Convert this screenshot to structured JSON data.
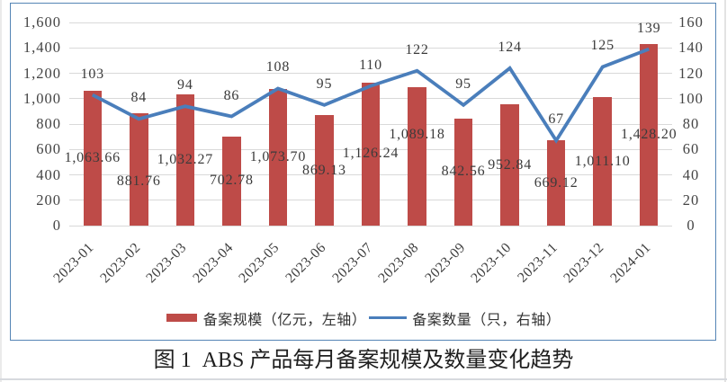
{
  "caption": "图 1  ABS 产品每月备案规模及数量变化趋势",
  "chart_data": {
    "type": "combo: bar (left axis) + line (right axis)",
    "categories": [
      "2023-01",
      "2023-02",
      "2023-03",
      "2023-04",
      "2023-05",
      "2023-06",
      "2023-07",
      "2023-08",
      "2023-09",
      "2023-10",
      "2023-11",
      "2023-12",
      "2024-01"
    ],
    "series": [
      {
        "name": "备案规模（亿元，左轴）",
        "type": "bar",
        "axis": "left",
        "color": "#be4b48",
        "values": [
          1063.66,
          881.76,
          1032.27,
          702.78,
          1073.7,
          869.13,
          1126.24,
          1089.18,
          842.56,
          952.84,
          669.12,
          1011.1,
          1428.2
        ],
        "labels": [
          "1,063.66",
          "881.76",
          "1,032.27",
          "702.78",
          "1,073.70",
          "869.13",
          "1,126.24",
          "1,089.18",
          "842.56",
          "952.84",
          "669.12",
          "1,011.10",
          "1,428.20"
        ]
      },
      {
        "name": "备案数量（只，右轴）",
        "type": "line",
        "axis": "right",
        "color": "#4a7ebb",
        "values": [
          103,
          84,
          94,
          86,
          108,
          95,
          110,
          122,
          95,
          124,
          67,
          125,
          139
        ],
        "labels": [
          "103",
          "84",
          "94",
          "86",
          "108",
          "95",
          "110",
          "122",
          "95",
          "124",
          "67",
          "125",
          "139"
        ]
      }
    ],
    "left_axis": {
      "min": 0,
      "max": 1600,
      "step": 200,
      "ticks": [
        "0",
        "200",
        "400",
        "600",
        "800",
        "1,000",
        "1,200",
        "1,400",
        "1,600"
      ]
    },
    "right_axis": {
      "min": 0,
      "max": 160,
      "step": 20,
      "ticks": [
        "0",
        "20",
        "40",
        "60",
        "80",
        "100",
        "120",
        "140",
        "160"
      ]
    },
    "grid": true,
    "legend_position": "bottom-center",
    "colors": {
      "gridline": "#d9d9d9",
      "frame_border": "#5585b5",
      "text": "#3d3d3d"
    }
  }
}
